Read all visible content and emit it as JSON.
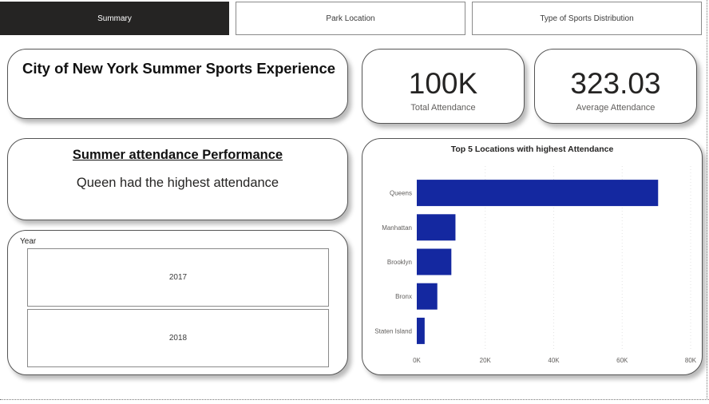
{
  "tabs": [
    {
      "label": "Summary"
    },
    {
      "label": "Park Location"
    },
    {
      "label": "Type of Sports Distribution"
    }
  ],
  "title": "City of New York  Summer Sports Experience",
  "kpis": [
    {
      "value": "100K",
      "label": "Total Attendance"
    },
    {
      "value": "323.03",
      "label": "Average Attendance"
    }
  ],
  "performance": {
    "title": "Summer attendance  Performance",
    "text": "Queen had the highest attendance"
  },
  "slicer": {
    "label": "Year",
    "items": [
      "2017",
      "2018"
    ]
  },
  "colors": {
    "bar": "#1428a0",
    "active_tab": "#252423"
  },
  "chart_data": {
    "type": "bar",
    "orientation": "horizontal",
    "title": "Top 5 Locations with highest Attendance",
    "categories": [
      "Queens",
      "Manhattan",
      "Brooklyn",
      "Bronx",
      "Staten Island"
    ],
    "values": [
      70500,
      11300,
      10100,
      6000,
      2300
    ],
    "xlim": [
      0,
      80000
    ],
    "xticks": [
      0,
      20000,
      40000,
      60000,
      80000
    ],
    "xtick_labels": [
      "0K",
      "20K",
      "40K",
      "60K",
      "80K"
    ],
    "grid": true,
    "xlabel": "",
    "ylabel": ""
  }
}
